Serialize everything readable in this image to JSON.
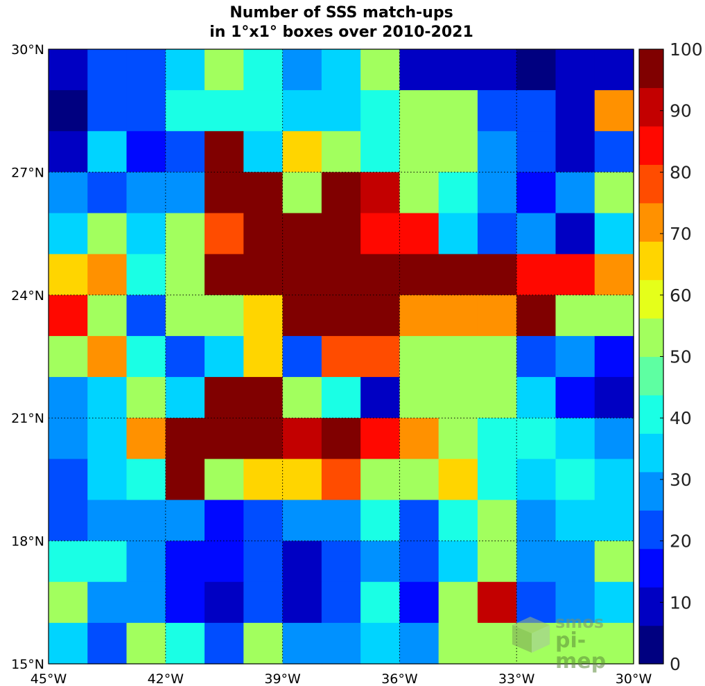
{
  "chart_data": {
    "type": "heatmap",
    "title": [
      "Number of SSS match-ups",
      "in 1°x1° boxes over 2010-2021"
    ],
    "x_ticks": [
      "45°W",
      "42°W",
      "39°W",
      "36°W",
      "33°W",
      "30°W"
    ],
    "y_ticks": [
      "30°N",
      "27°N",
      "24°N",
      "21°N",
      "18°N",
      "15°N"
    ],
    "x_range": [
      -45,
      -30
    ],
    "y_range": [
      15,
      30
    ],
    "grid": true,
    "colorbar": {
      "ticks": [
        "100",
        "90",
        "80",
        "70",
        "60",
        "50",
        "40",
        "30",
        "20",
        "10",
        "0"
      ],
      "range": [
        0,
        100
      ],
      "n_bins": 16,
      "colormap": "jet"
    },
    "rows_north_to_south": [
      [
        10,
        20,
        20,
        32,
        50,
        40,
        28,
        32,
        50,
        8,
        8,
        10,
        0,
        10,
        10
      ],
      [
        6,
        20,
        22,
        40,
        40,
        40,
        32,
        36,
        40,
        55,
        50,
        22,
        20,
        10,
        70
      ],
      [
        10,
        36,
        18,
        22,
        100,
        36,
        63,
        50,
        40,
        50,
        50,
        30,
        20,
        10,
        20
      ],
      [
        30,
        22,
        25,
        25,
        100,
        100,
        50,
        100,
        90,
        55,
        40,
        25,
        18,
        25,
        50
      ],
      [
        36,
        50,
        36,
        50,
        75,
        100,
        100,
        100,
        82,
        82,
        36,
        20,
        30,
        10,
        36
      ],
      [
        68,
        70,
        40,
        50,
        100,
        100,
        100,
        100,
        100,
        100,
        100,
        100,
        82,
        82,
        70
      ],
      [
        82,
        50,
        20,
        50,
        55,
        63,
        100,
        100,
        100,
        70,
        70,
        70,
        100,
        55,
        50
      ],
      [
        50,
        70,
        40,
        20,
        32,
        63,
        20,
        75,
        75,
        55,
        50,
        50,
        20,
        25,
        18
      ],
      [
        30,
        36,
        50,
        32,
        100,
        100,
        50,
        40,
        10,
        50,
        50,
        50,
        36,
        18,
        10
      ],
      [
        25,
        36,
        70,
        100,
        100,
        100,
        90,
        100,
        82,
        70,
        55,
        40,
        40,
        36,
        25
      ],
      [
        20,
        36,
        40,
        94,
        50,
        68,
        68,
        75,
        55,
        50,
        63,
        40,
        36,
        40,
        32
      ],
      [
        20,
        25,
        25,
        25,
        18,
        20,
        25,
        30,
        40,
        20,
        40,
        50,
        25,
        36,
        32
      ],
      [
        40,
        40,
        25,
        18,
        18,
        20,
        10,
        20,
        25,
        20,
        36,
        50,
        25,
        25,
        50
      ],
      [
        50,
        25,
        30,
        18,
        8,
        20,
        10,
        20,
        40,
        18,
        50,
        90,
        20,
        30,
        36
      ],
      [
        36,
        20,
        50,
        40,
        20,
        50,
        25,
        25,
        36,
        30,
        50,
        55,
        55,
        55,
        55
      ]
    ]
  },
  "watermark": {
    "line1": "smos",
    "line2": "pi-mep"
  }
}
